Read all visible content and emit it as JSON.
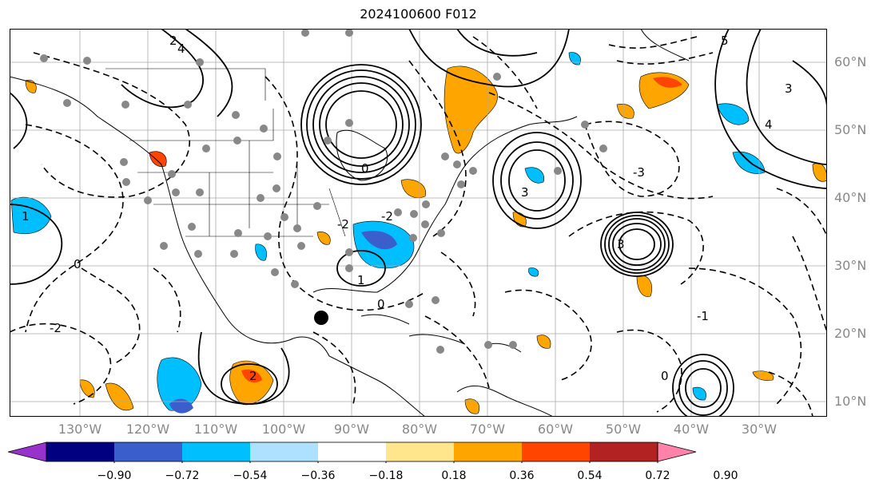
{
  "title": "2024100600 F012",
  "lat_labels": [
    "60°N",
    "50°N",
    "40°N",
    "30°N",
    "20°N",
    "10°N"
  ],
  "lon_labels": [
    "130°W",
    "120°W",
    "110°W",
    "100°W",
    "90°W",
    "80°W",
    "70°W",
    "60°W",
    "50°W",
    "40°W",
    "30°W"
  ],
  "colorbar": {
    "colors": [
      "#9932CC",
      "#000080",
      "#3A5FCD",
      "#00BFFF",
      "#ADE1FF",
      "#FFFFFF",
      "#FFE68C",
      "#FFA500",
      "#FF4500",
      "#B22222",
      "#FF82AB"
    ],
    "tick_labels": [
      "−0.90",
      "−0.72",
      "−0.54",
      "−0.36",
      "−0.18",
      "0.18",
      "0.36",
      "0.54",
      "0.72",
      "0.90"
    ]
  },
  "contour_labels": [
    "2",
    "4",
    "3",
    "1",
    "0",
    "-1",
    "-2",
    "-3",
    "5"
  ],
  "marker": "black-dot"
}
